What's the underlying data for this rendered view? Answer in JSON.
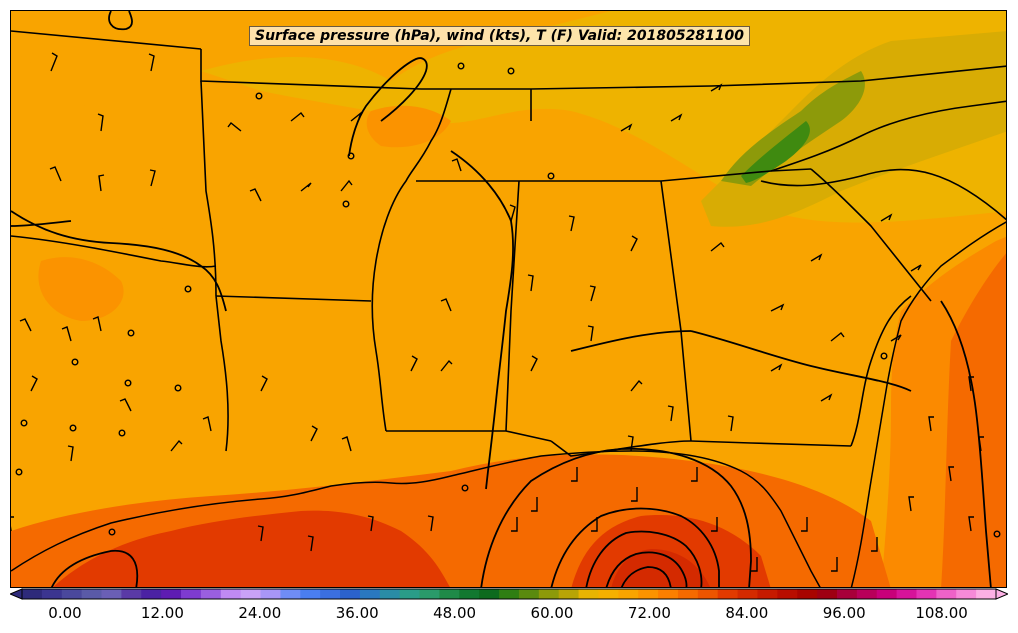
{
  "title": "Surface pressure (hPa), wind (kts), T (F) Valid: 201805281100",
  "colorbar": {
    "ticks": [
      "0.00",
      "12.00",
      "24.00",
      "36.00",
      "48.00",
      "60.00",
      "72.00",
      "84.00",
      "96.00",
      "108.00"
    ],
    "range": [
      0,
      120
    ],
    "colors": [
      "#2e2a7a",
      "#3b3590",
      "#4a489c",
      "#5a5aa8",
      "#6a5fb5",
      "#5a3aa6",
      "#4b22a3",
      "#5e1cb2",
      "#7e3bd0",
      "#9a5fe0",
      "#c08af3",
      "#c9a2f7",
      "#a896f7",
      "#6f8cf5",
      "#4a7ef0",
      "#3b6fe0",
      "#2b62cc",
      "#2a78c0",
      "#2a8ca6",
      "#2a9c88",
      "#2a9a6a",
      "#1f8a48",
      "#127830",
      "#0d6a1e",
      "#2f7e13",
      "#5a8a0f",
      "#8d9a0a",
      "#b8a406",
      "#e8b402",
      "#f5b000",
      "#f9a400",
      "#fb9300",
      "#fc7f00",
      "#f56a00",
      "#ed5500",
      "#e23a00",
      "#d42a00",
      "#c61a00",
      "#b80d00",
      "#a80400",
      "#9e0012",
      "#a8003a",
      "#b8005a",
      "#c8007a",
      "#d6139a",
      "#e433b4",
      "#ee62c8",
      "#f68ad8",
      "#fcb0e4"
    ]
  },
  "map_fill_colors": {
    "base": "#f9a400",
    "warm": "#fc7f00",
    "warmer": "#f05a00",
    "hot": "#e23a00",
    "cool": "#e8b402",
    "cooler": "#8d9a0a",
    "cold": "#3f8a10"
  }
}
